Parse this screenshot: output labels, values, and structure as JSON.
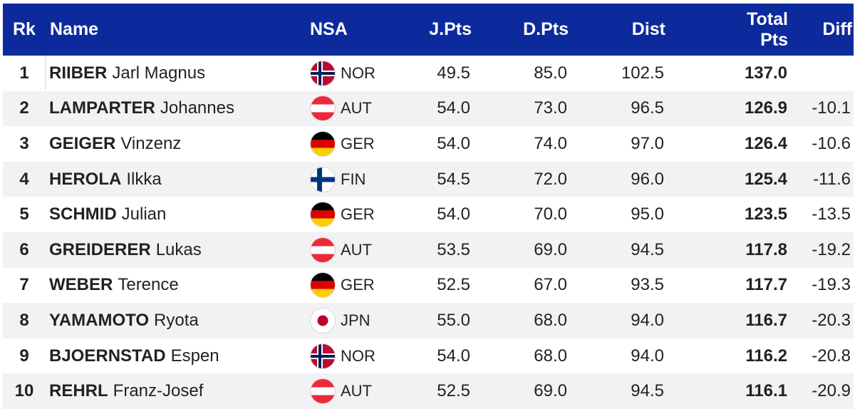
{
  "header": {
    "rk": "Rk",
    "name": "Name",
    "nsa": "NSA",
    "jpts": "J.Pts",
    "dpts": "D.Pts",
    "dist": "Dist",
    "total_line1": "Total",
    "total_line2": "Pts",
    "diff": "Diff",
    "background_color": "#0d2a9c"
  },
  "rows": [
    {
      "rk": "1",
      "last": "RIIBER",
      "first": "Jarl Magnus",
      "flag": "NOR",
      "nsa": "NOR",
      "jpts": "49.5",
      "dpts": "85.0",
      "dist": "102.5",
      "total": "137.0",
      "diff": ""
    },
    {
      "rk": "2",
      "last": "LAMPARTER",
      "first": "Johannes",
      "flag": "AUT",
      "nsa": "AUT",
      "jpts": "54.0",
      "dpts": "73.0",
      "dist": "96.5",
      "total": "126.9",
      "diff": "-10.1"
    },
    {
      "rk": "3",
      "last": "GEIGER",
      "first": "Vinzenz",
      "flag": "GER",
      "nsa": "GER",
      "jpts": "54.0",
      "dpts": "74.0",
      "dist": "97.0",
      "total": "126.4",
      "diff": "-10.6"
    },
    {
      "rk": "4",
      "last": "HEROLA",
      "first": "Ilkka",
      "flag": "FIN",
      "nsa": "FIN",
      "jpts": "54.5",
      "dpts": "72.0",
      "dist": "96.0",
      "total": "125.4",
      "diff": "-11.6"
    },
    {
      "rk": "5",
      "last": "SCHMID",
      "first": "Julian",
      "flag": "GER",
      "nsa": "GER",
      "jpts": "54.0",
      "dpts": "70.0",
      "dist": "95.0",
      "total": "123.5",
      "diff": "-13.5"
    },
    {
      "rk": "6",
      "last": "GREIDERER",
      "first": "Lukas",
      "flag": "AUT",
      "nsa": "AUT",
      "jpts": "53.5",
      "dpts": "69.0",
      "dist": "94.5",
      "total": "117.8",
      "diff": "-19.2"
    },
    {
      "rk": "7",
      "last": "WEBER",
      "first": "Terence",
      "flag": "GER",
      "nsa": "GER",
      "jpts": "52.5",
      "dpts": "67.0",
      "dist": "93.5",
      "total": "117.7",
      "diff": "-19.3"
    },
    {
      "rk": "8",
      "last": "YAMAMOTO",
      "first": "Ryota",
      "flag": "JPN",
      "nsa": "JPN",
      "jpts": "55.0",
      "dpts": "68.0",
      "dist": "94.0",
      "total": "116.7",
      "diff": "-20.3"
    },
    {
      "rk": "9",
      "last": "BJOERNSTAD",
      "first": "Espen",
      "flag": "NOR",
      "nsa": "NOR",
      "jpts": "54.0",
      "dpts": "68.0",
      "dist": "94.0",
      "total": "116.2",
      "diff": "-20.8"
    },
    {
      "rk": "10",
      "last": "REHRL",
      "first": "Franz-Josef",
      "flag": "AUT",
      "nsa": "AUT",
      "jpts": "52.5",
      "dpts": "69.0",
      "dist": "94.5",
      "total": "116.1",
      "diff": "-20.9"
    }
  ]
}
